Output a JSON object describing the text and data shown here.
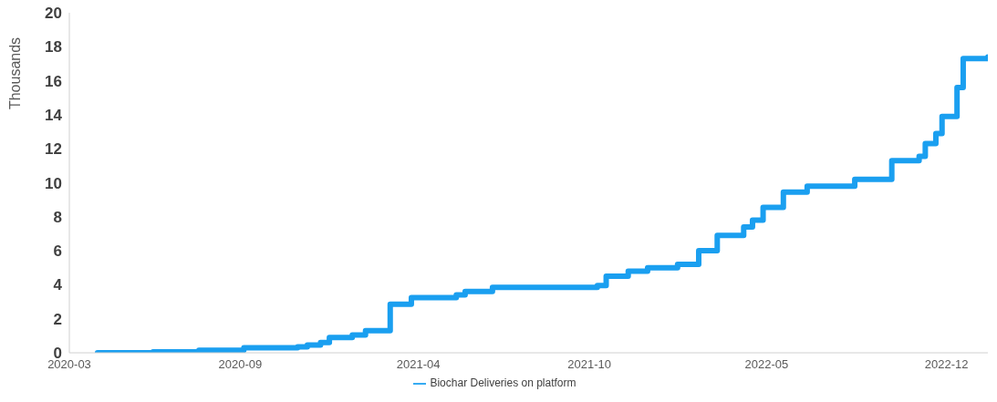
{
  "chart_data": {
    "type": "step",
    "ylabel": "Thousands",
    "legend": "bottom",
    "x": [
      "2020-04-21",
      "2020-06-23",
      "2020-08-14",
      "2020-10-04",
      "2020-12-04",
      "2020-12-15",
      "2020-12-30",
      "2021-01-09",
      "2021-02-04",
      "2021-02-19",
      "2021-03-19",
      "2021-04-12",
      "2021-06-02",
      "2021-06-12",
      "2021-07-13",
      "2021-11-09",
      "2021-11-19",
      "2021-12-14",
      "2022-01-05",
      "2022-02-08",
      "2022-03-04",
      "2022-03-25",
      "2022-04-24",
      "2022-05-04",
      "2022-05-16",
      "2022-06-08",
      "2022-07-05",
      "2022-08-28",
      "2022-10-09",
      "2022-11-09",
      "2022-11-16",
      "2022-11-28",
      "2022-12-05",
      "2022-12-22",
      "2022-12-29",
      "2023-01-26"
    ],
    "series": [
      {
        "name": "Biochar Deliveries on platform",
        "color": "#1a9ff0",
        "values": [
          0,
          0.05,
          0.15,
          0.3,
          0.35,
          0.45,
          0.6,
          0.9,
          1.05,
          1.3,
          2.85,
          3.25,
          3.4,
          3.6,
          3.85,
          3.95,
          4.5,
          4.8,
          5.0,
          5.2,
          6.0,
          6.9,
          7.4,
          7.8,
          8.55,
          9.45,
          9.8,
          10.2,
          11.3,
          11.55,
          12.3,
          12.9,
          13.9,
          15.6,
          17.3,
          17.4
        ]
      }
    ],
    "xlim": [
      "2020-03-20",
      "2023-01-26"
    ],
    "xticks": [
      {
        "value": "2020-03-20",
        "label": "2020-03"
      },
      {
        "value": "2020-09-30",
        "label": "2020-09"
      },
      {
        "value": "2021-04-20",
        "label": "2021-04"
      },
      {
        "value": "2021-10-31",
        "label": "2021-10"
      },
      {
        "value": "2022-05-20",
        "label": "2022-05"
      },
      {
        "value": "2022-12-10",
        "label": "2022-12"
      }
    ],
    "ylim": [
      0,
      20
    ],
    "yticks": [
      0,
      2,
      4,
      6,
      8,
      10,
      12,
      14,
      16,
      18,
      20
    ]
  }
}
